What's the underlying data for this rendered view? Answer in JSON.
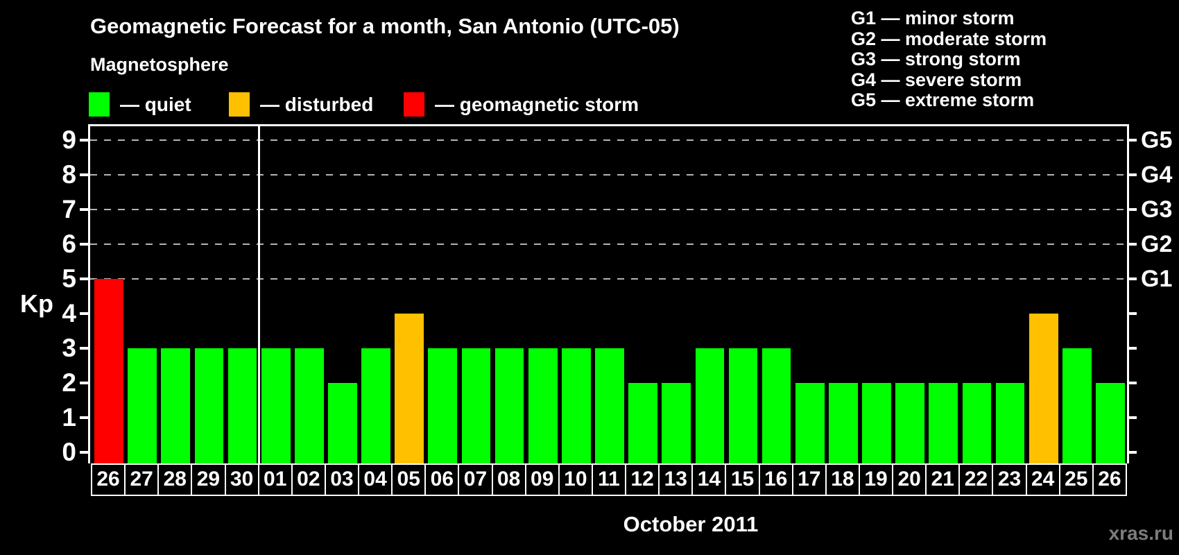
{
  "title": "Geomagnetic Forecast for a month, San Antonio (UTC-05)",
  "subtitle": "Magnetosphere",
  "status_legend": [
    {
      "status": "quiet",
      "color": "#00ff00",
      "label": "— quiet"
    },
    {
      "status": "disturbed",
      "color": "#ffc000",
      "label": "— disturbed"
    },
    {
      "status": "storm",
      "color": "#ff0000",
      "label": "— geomagnetic storm"
    }
  ],
  "storm_scale_legend": [
    "G1 — minor storm",
    "G2 — moderate storm",
    "G3 — strong storm",
    "G4 — severe storm",
    "G5 — extreme storm"
  ],
  "footer": {
    "xlabel": "October 2011",
    "watermark": "xras.ru"
  },
  "chart_data": {
    "type": "bar",
    "title": "Geomagnetic Forecast for a month, San Antonio (UTC-05)",
    "ylabel": "Kp",
    "xlabel": "October 2011",
    "ylim": [
      0,
      9
    ],
    "yticks": [
      0,
      1,
      2,
      3,
      4,
      5,
      6,
      7,
      8,
      9
    ],
    "gridlines_at": [
      5,
      6,
      7,
      8,
      9
    ],
    "grid": "dashed horizontal at storm levels only",
    "right_axis_labels": [
      {
        "label": "G1",
        "at": 5
      },
      {
        "label": "G2",
        "at": 6
      },
      {
        "label": "G3",
        "at": 7
      },
      {
        "label": "G4",
        "at": 8
      },
      {
        "label": "G5",
        "at": 9
      }
    ],
    "categories": [
      "26",
      "27",
      "28",
      "29",
      "30",
      "01",
      "02",
      "03",
      "04",
      "05",
      "06",
      "07",
      "08",
      "09",
      "10",
      "11",
      "12",
      "13",
      "14",
      "15",
      "16",
      "17",
      "18",
      "19",
      "20",
      "21",
      "22",
      "23",
      "24",
      "25",
      "26"
    ],
    "values": [
      5,
      3,
      3,
      3,
      3,
      3,
      3,
      2,
      3,
      4,
      3,
      3,
      3,
      3,
      3,
      3,
      2,
      2,
      3,
      3,
      3,
      2,
      2,
      2,
      2,
      2,
      2,
      2,
      4,
      3,
      2
    ],
    "statuses": [
      "storm",
      "quiet",
      "quiet",
      "quiet",
      "quiet",
      "quiet",
      "quiet",
      "quiet",
      "quiet",
      "disturbed",
      "quiet",
      "quiet",
      "quiet",
      "quiet",
      "quiet",
      "quiet",
      "quiet",
      "quiet",
      "quiet",
      "quiet",
      "quiet",
      "quiet",
      "quiet",
      "quiet",
      "quiet",
      "quiet",
      "quiet",
      "quiet",
      "disturbed",
      "quiet",
      "quiet"
    ],
    "status_colors": {
      "quiet": "#00ff00",
      "disturbed": "#ffc000",
      "storm": "#ff0000"
    },
    "month_separator_after_index": 4
  }
}
